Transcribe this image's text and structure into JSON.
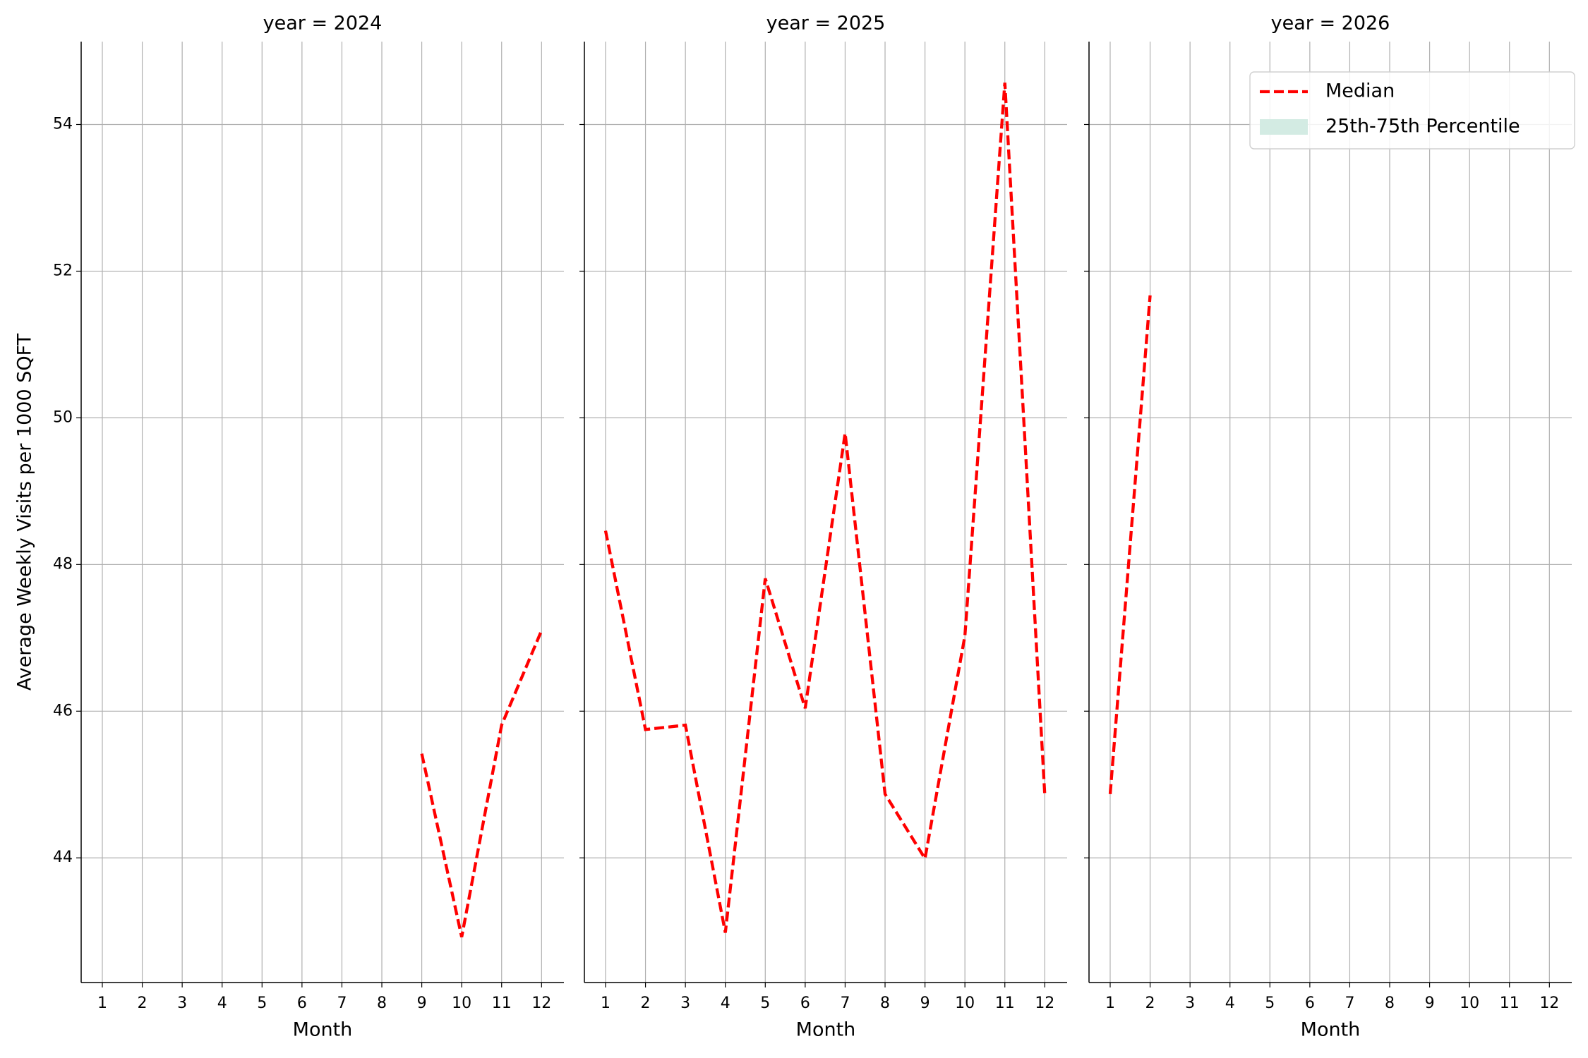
{
  "chart_data": [
    {
      "type": "line",
      "title": "year = 2024",
      "xlabel": "Month",
      "ylabel": "Average Weekly Visits per 1000 SQFT",
      "x": [
        1,
        2,
        3,
        4,
        5,
        6,
        7,
        8,
        9,
        10,
        11,
        12
      ],
      "series": [
        {
          "color": "#ff0000",
          "style": "dashed",
          "values": [
            null,
            null,
            null,
            null,
            null,
            null,
            null,
            null,
            45.42,
            42.92,
            45.81,
            47.1
          ]
        }
      ],
      "xlim": [
        0.47,
        12.56
      ],
      "xticks": [
        1,
        2,
        3,
        4,
        5,
        6,
        7,
        8,
        9,
        10,
        11,
        12
      ],
      "ylim": [
        42.3,
        55.13
      ],
      "yticks": [
        44,
        46,
        48,
        50,
        52,
        54
      ],
      "ytick_labels": true,
      "grid": true
    },
    {
      "type": "line",
      "title": "year = 2025",
      "xlabel": "Month",
      "x": [
        1,
        2,
        3,
        4,
        5,
        6,
        7,
        8,
        9,
        10,
        11,
        12
      ],
      "series": [
        {
          "color": "#ff0000",
          "style": "dashed",
          "values": [
            48.46,
            45.75,
            45.81,
            42.98,
            47.81,
            46.04,
            49.79,
            44.87,
            43.99,
            47.03,
            54.57,
            44.86
          ]
        }
      ],
      "xlim": [
        0.47,
        12.56
      ],
      "xticks": [
        1,
        2,
        3,
        4,
        5,
        6,
        7,
        8,
        9,
        10,
        11,
        12
      ],
      "ylim": [
        42.3,
        55.13
      ],
      "yticks": [
        44,
        46,
        48,
        50,
        52,
        54
      ],
      "ytick_labels": false,
      "grid": true
    },
    {
      "type": "line",
      "title": "year = 2026",
      "xlabel": "Month",
      "x": [
        1,
        2,
        3,
        4,
        5,
        6,
        7,
        8,
        9,
        10,
        11,
        12
      ],
      "series": [
        {
          "color": "#ff0000",
          "style": "dashed",
          "values": [
            44.87,
            51.67,
            null,
            null,
            null,
            null,
            null,
            null,
            null,
            null,
            null,
            null
          ]
        }
      ],
      "xlim": [
        0.47,
        12.56
      ],
      "xticks": [
        1,
        2,
        3,
        4,
        5,
        6,
        7,
        8,
        9,
        10,
        11,
        12
      ],
      "ylim": [
        42.3,
        55.13
      ],
      "yticks": [
        44,
        46,
        48,
        50,
        52,
        54
      ],
      "ytick_labels": false,
      "grid": true,
      "legend": {
        "loc": "upper right",
        "entries": [
          {
            "name": "Median",
            "color": "#ff0000",
            "style": "dashed"
          },
          {
            "name": "25th-75th Percentile",
            "color": "#d3ebe3",
            "style": "band"
          }
        ]
      }
    }
  ]
}
